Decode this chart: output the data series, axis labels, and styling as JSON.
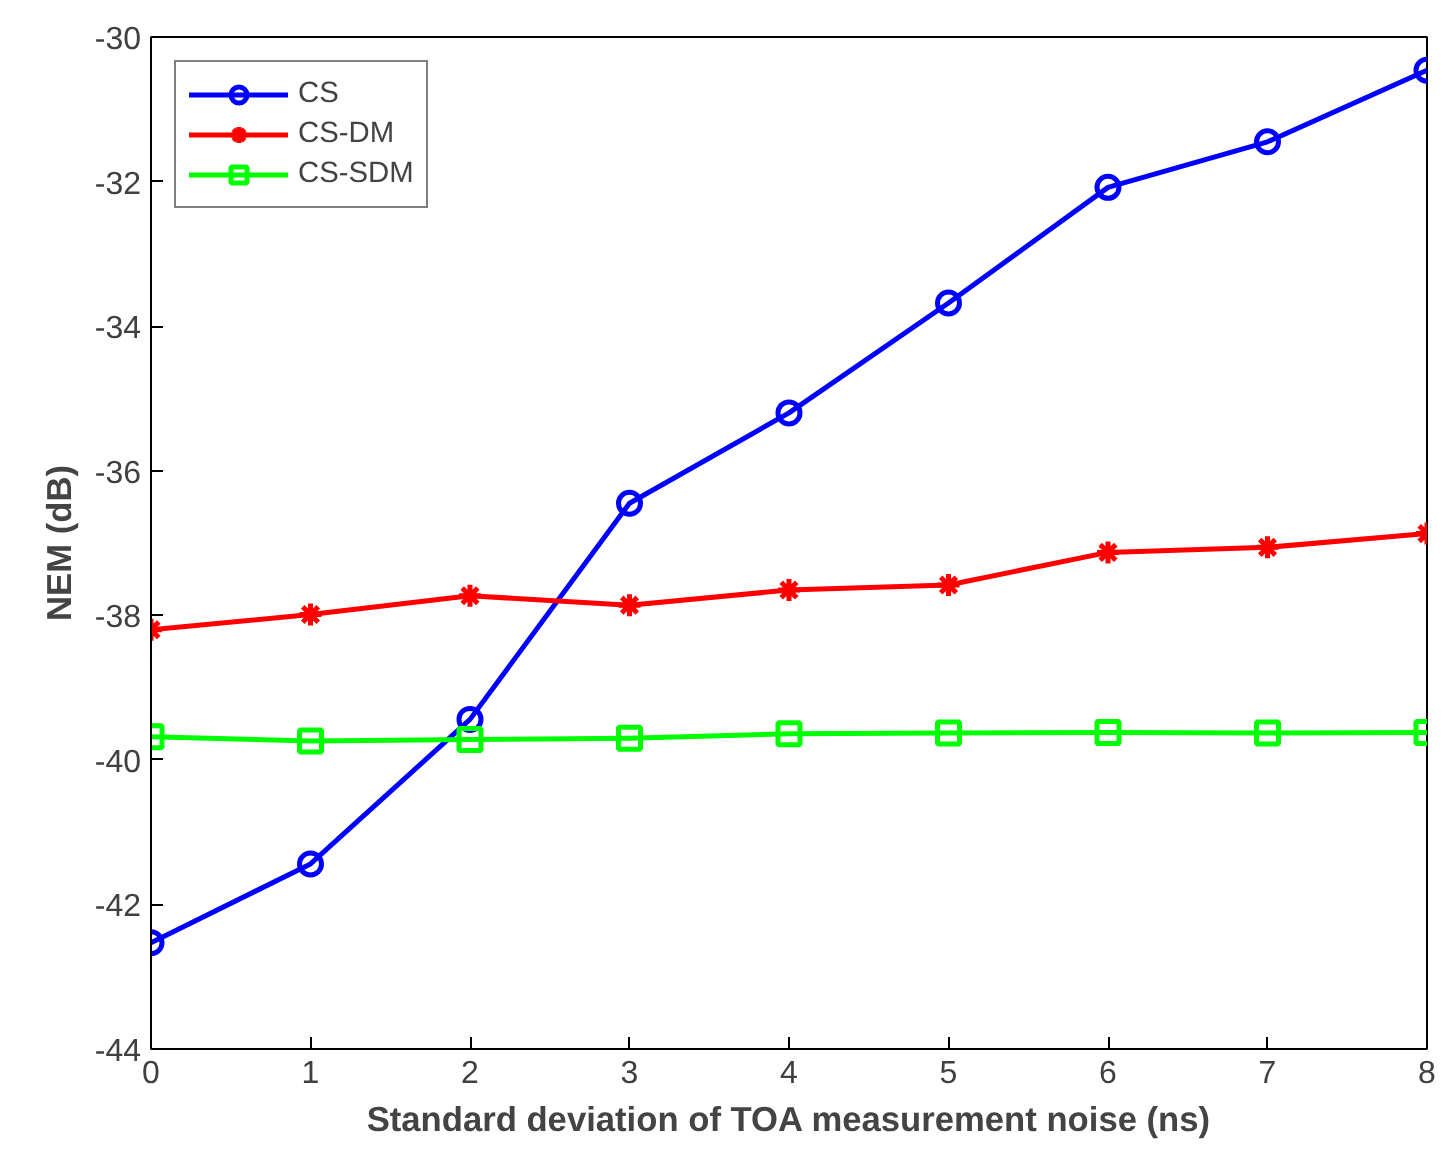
{
  "chart_data": {
    "type": "line",
    "xlabel": "Standard deviation of TOA measurement noise (ns)",
    "ylabel": "NEM (dB)",
    "x": [
      0,
      1,
      2,
      3,
      4,
      5,
      6,
      7,
      8
    ],
    "series": [
      {
        "name": "CS",
        "color": "#0000ff",
        "marker": "circle",
        "values": [
          -42.53,
          -41.44,
          -39.44,
          -36.45,
          -35.2,
          -33.68,
          -32.08,
          -31.45,
          -30.46
        ]
      },
      {
        "name": "CS-DM",
        "color": "#ff0000",
        "marker": "cross",
        "values": [
          -38.2,
          -37.99,
          -37.73,
          -37.86,
          -37.65,
          -37.58,
          -37.13,
          -37.06,
          -36.87
        ]
      },
      {
        "name": "CS-SDM",
        "color": "#00ff00",
        "marker": "square",
        "values": [
          -39.68,
          -39.74,
          -39.72,
          -39.7,
          -39.64,
          -39.63,
          -39.62,
          -39.63,
          -39.62
        ]
      }
    ],
    "xlim": [
      0,
      8
    ],
    "xticks": [
      0,
      1,
      2,
      3,
      4,
      5,
      6,
      7,
      8
    ],
    "ylim": [
      -44,
      -30
    ],
    "yticks": [
      -44,
      -42,
      -40,
      -38,
      -36,
      -34,
      -32,
      -30
    ],
    "grid": false,
    "legend": "top left",
    "line_style": "solid"
  }
}
